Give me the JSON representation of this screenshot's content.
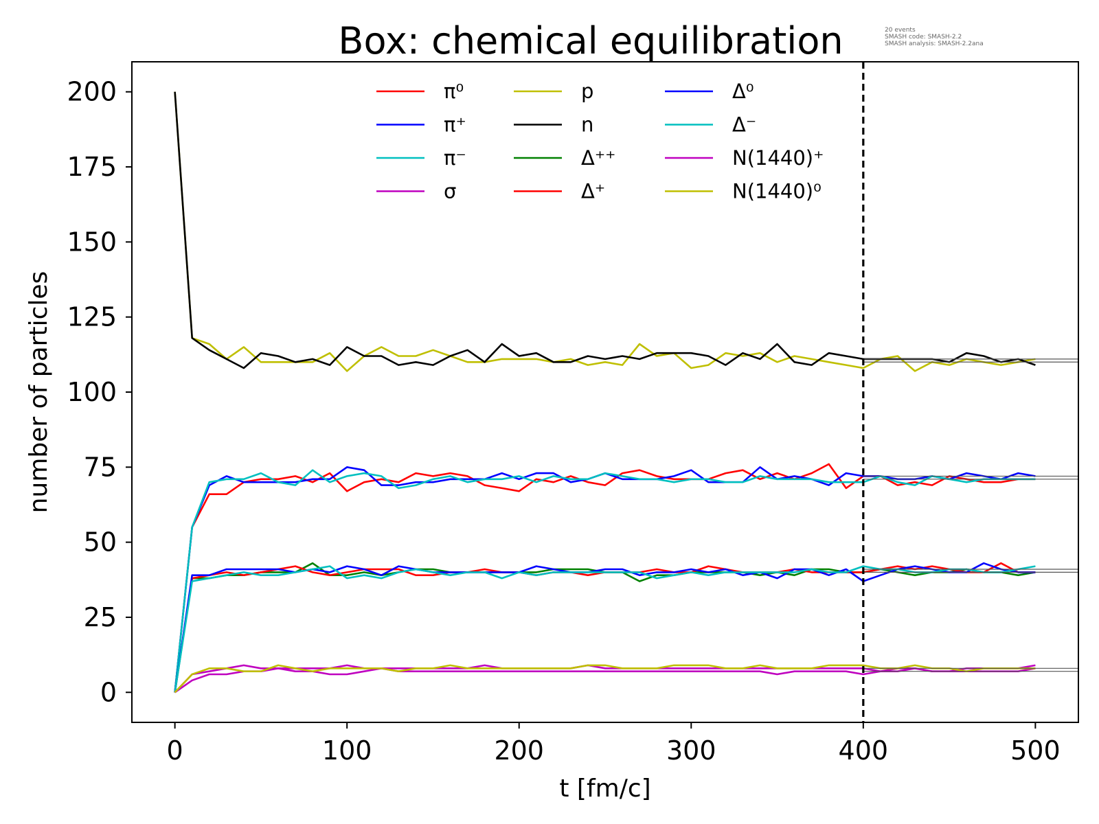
{
  "chart_data": {
    "type": "line",
    "title": "Box: chemical equilibration",
    "xlabel": "t [fm/c]",
    "ylabel": "number of particles",
    "xlim": [
      -25,
      525
    ],
    "ylim": [
      -10,
      210
    ],
    "xticks": [
      0,
      100,
      200,
      300,
      400,
      500
    ],
    "yticks": [
      0,
      25,
      50,
      75,
      100,
      125,
      150,
      175,
      200
    ],
    "xtick_labels": [
      "0",
      "100",
      "200",
      "300",
      "400",
      "500"
    ],
    "ytick_labels": [
      "0",
      "25",
      "50",
      "75",
      "100",
      "125",
      "150",
      "175",
      "200"
    ],
    "grid": false,
    "legend_position": "top-center",
    "legend_columns": 3,
    "metadata_lines": [
      "20 events",
      "SMASH code:      SMASH-2.2",
      "SMASH analysis:  SMASH-2.2ana"
    ],
    "vertical_marker": {
      "x": 400,
      "style": "dashed",
      "color": "#000000"
    },
    "x": [
      0,
      10,
      20,
      30,
      40,
      50,
      60,
      70,
      80,
      90,
      100,
      110,
      120,
      130,
      140,
      150,
      160,
      170,
      180,
      190,
      200,
      210,
      220,
      230,
      240,
      250,
      260,
      270,
      280,
      290,
      300,
      310,
      320,
      330,
      340,
      350,
      360,
      370,
      380,
      390,
      400,
      410,
      420,
      430,
      440,
      450,
      460,
      470,
      480,
      490,
      500
    ],
    "series": [
      {
        "name": "π⁰",
        "color": "#ff0000",
        "values": [
          0,
          55,
          66,
          66,
          70,
          71,
          71,
          72,
          70,
          73,
          67,
          70,
          71,
          70,
          73,
          72,
          73,
          72,
          69,
          68,
          67,
          71,
          70,
          72,
          70,
          69,
          73,
          74,
          72,
          71,
          71,
          71,
          73,
          74,
          71,
          73,
          71,
          73,
          76,
          68,
          72,
          72,
          69,
          70,
          69,
          72,
          71,
          70,
          70,
          71,
          71
        ]
      },
      {
        "name": "π⁺",
        "color": "#0000ff",
        "values": [
          0,
          55,
          69,
          72,
          70,
          70,
          70,
          70,
          71,
          71,
          75,
          74,
          69,
          69,
          70,
          70,
          71,
          71,
          71,
          73,
          71,
          73,
          73,
          70,
          71,
          73,
          71,
          71,
          71,
          72,
          74,
          70,
          70,
          70,
          75,
          71,
          72,
          71,
          69,
          73,
          72,
          72,
          71,
          71,
          72,
          71,
          73,
          72,
          71,
          73,
          72
        ]
      },
      {
        "name": "π⁻",
        "color": "#00bfbf",
        "values": [
          0,
          55,
          70,
          71,
          71,
          73,
          70,
          69,
          74,
          70,
          72,
          73,
          72,
          68,
          69,
          71,
          72,
          70,
          71,
          71,
          72,
          70,
          72,
          71,
          71,
          73,
          72,
          71,
          71,
          70,
          71,
          71,
          70,
          70,
          72,
          71,
          71,
          71,
          70,
          70,
          70,
          72,
          70,
          69,
          72,
          71,
          70,
          71,
          71,
          71,
          71
        ]
      },
      {
        "name": "σ",
        "color": "#bf00bf",
        "values": [
          0,
          4,
          6,
          6,
          7,
          7,
          8,
          7,
          7,
          6,
          6,
          7,
          8,
          7,
          7,
          7,
          7,
          7,
          7,
          7,
          7,
          7,
          7,
          7,
          7,
          7,
          7,
          7,
          7,
          7,
          7,
          7,
          7,
          7,
          7,
          6,
          7,
          7,
          7,
          7,
          6,
          7,
          7,
          8,
          7,
          7,
          7,
          7,
          7,
          7,
          8
        ]
      },
      {
        "name": "p",
        "color": "#bfbf00",
        "values": [
          200,
          118,
          116,
          111,
          115,
          110,
          110,
          110,
          110,
          113,
          107,
          112,
          115,
          112,
          112,
          114,
          112,
          110,
          110,
          111,
          111,
          111,
          110,
          111,
          109,
          110,
          109,
          116,
          112,
          113,
          108,
          109,
          113,
          112,
          113,
          110,
          112,
          111,
          110,
          109,
          108,
          111,
          112,
          107,
          110,
          109,
          111,
          110,
          109,
          110,
          111
        ]
      },
      {
        "name": "n",
        "color": "#000000",
        "values": [
          200,
          118,
          114,
          111,
          108,
          113,
          112,
          110,
          111,
          109,
          115,
          112,
          112,
          109,
          110,
          109,
          112,
          114,
          110,
          116,
          112,
          113,
          110,
          110,
          112,
          111,
          112,
          111,
          113,
          113,
          113,
          112,
          109,
          113,
          111,
          116,
          110,
          109,
          113,
          112,
          111,
          111,
          111,
          111,
          111,
          110,
          113,
          112,
          110,
          111,
          109
        ]
      },
      {
        "name": "Δ⁺⁺",
        "color": "#008000",
        "values": [
          0,
          38,
          38,
          39,
          39,
          40,
          40,
          40,
          43,
          39,
          39,
          40,
          39,
          40,
          41,
          41,
          40,
          40,
          40,
          40,
          40,
          40,
          41,
          41,
          41,
          40,
          40,
          37,
          39,
          39,
          40,
          40,
          40,
          40,
          39,
          40,
          39,
          41,
          41,
          40,
          40,
          41,
          40,
          39,
          40,
          40,
          41,
          40,
          40,
          39,
          40
        ]
      },
      {
        "name": "Δ⁺",
        "color": "#ff0000",
        "values": [
          0,
          38,
          39,
          40,
          39,
          40,
          41,
          42,
          40,
          39,
          40,
          41,
          41,
          41,
          39,
          39,
          40,
          40,
          41,
          40,
          40,
          39,
          40,
          40,
          39,
          40,
          40,
          40,
          41,
          40,
          40,
          42,
          41,
          40,
          40,
          40,
          41,
          40,
          40,
          40,
          40,
          41,
          42,
          41,
          42,
          41,
          40,
          40,
          43,
          40,
          40
        ]
      },
      {
        "name": "Δ⁰",
        "color": "#0000ff",
        "values": [
          0,
          39,
          39,
          41,
          41,
          41,
          41,
          40,
          41,
          40,
          42,
          41,
          39,
          42,
          41,
          40,
          40,
          40,
          40,
          40,
          40,
          42,
          41,
          40,
          40,
          41,
          41,
          39,
          40,
          40,
          41,
          40,
          41,
          39,
          40,
          38,
          41,
          41,
          39,
          41,
          37,
          39,
          41,
          42,
          41,
          40,
          40,
          43,
          41,
          40,
          40
        ]
      },
      {
        "name": "Δ⁻",
        "color": "#00bfbf",
        "values": [
          0,
          37,
          38,
          39,
          40,
          39,
          39,
          40,
          41,
          42,
          38,
          39,
          38,
          40,
          41,
          40,
          39,
          40,
          40,
          38,
          40,
          39,
          40,
          40,
          40,
          40,
          40,
          40,
          38,
          39,
          40,
          39,
          40,
          40,
          40,
          40,
          40,
          41,
          40,
          40,
          42,
          41,
          41,
          40,
          40,
          41,
          41,
          40,
          40,
          41,
          42
        ]
      },
      {
        "name": "N(1440)⁺",
        "color": "#bf00bf",
        "values": [
          0,
          6,
          7,
          8,
          9,
          8,
          8,
          8,
          8,
          8,
          9,
          8,
          8,
          8,
          8,
          8,
          8,
          8,
          9,
          8,
          8,
          8,
          8,
          8,
          9,
          8,
          8,
          8,
          8,
          8,
          8,
          8,
          8,
          8,
          8,
          8,
          8,
          8,
          8,
          8,
          8,
          7,
          8,
          8,
          7,
          7,
          8,
          8,
          8,
          8,
          9
        ]
      },
      {
        "name": "N(1440)⁰",
        "color": "#bfbf00",
        "values": [
          0,
          6,
          8,
          8,
          7,
          7,
          9,
          8,
          7,
          8,
          8,
          8,
          8,
          7,
          8,
          8,
          9,
          8,
          8,
          8,
          8,
          8,
          8,
          8,
          9,
          9,
          8,
          8,
          8,
          9,
          9,
          9,
          8,
          8,
          9,
          8,
          8,
          8,
          9,
          9,
          9,
          8,
          8,
          9,
          8,
          8,
          7,
          8,
          8,
          8,
          8
        ]
      }
    ],
    "asymptote_levels": [
      110,
      111,
      71,
      72,
      40,
      41,
      7,
      8
    ]
  }
}
